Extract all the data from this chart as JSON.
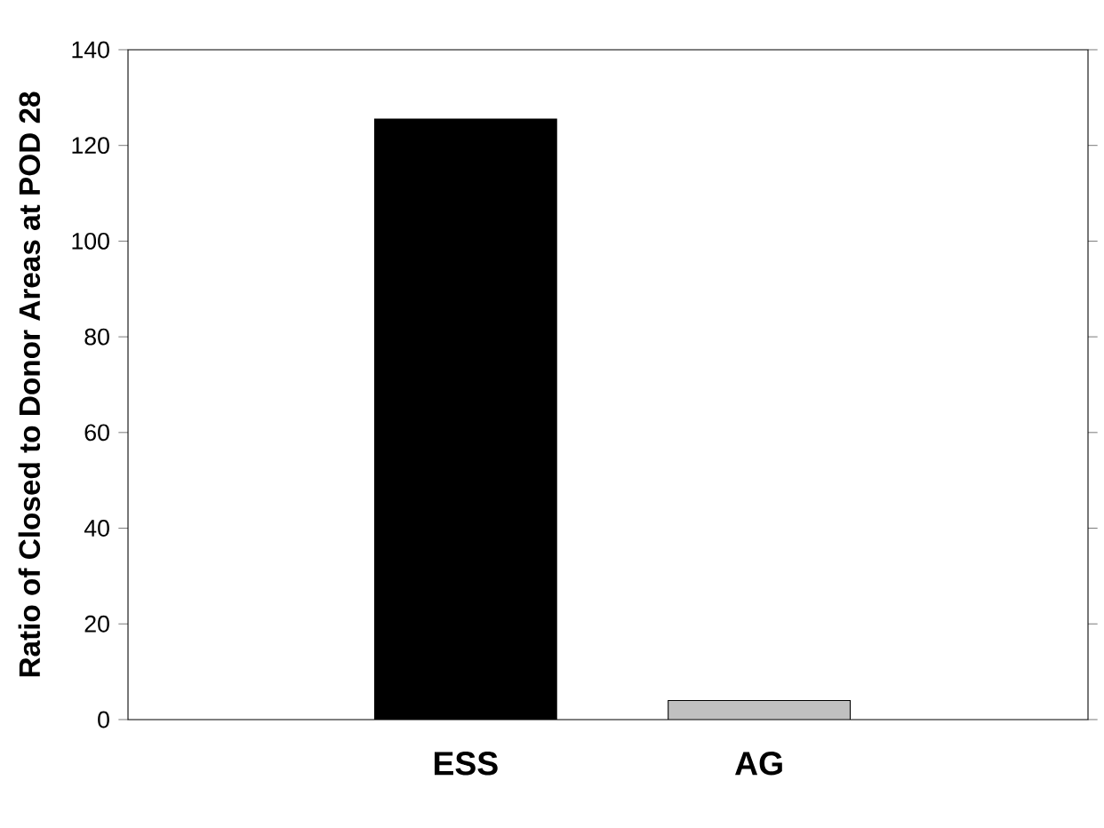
{
  "chart_data": {
    "type": "bar",
    "ylabel": "Ratio of Closed to Donor Areas at POD 28",
    "categories": [
      "ESS",
      "AG"
    ],
    "values": [
      125.5,
      4
    ],
    "colors": [
      "#000000",
      "#c0c0c0"
    ],
    "ylim": [
      0,
      140
    ],
    "yticks": [
      0,
      20,
      40,
      60,
      80,
      100,
      120,
      140
    ],
    "grid": false
  }
}
